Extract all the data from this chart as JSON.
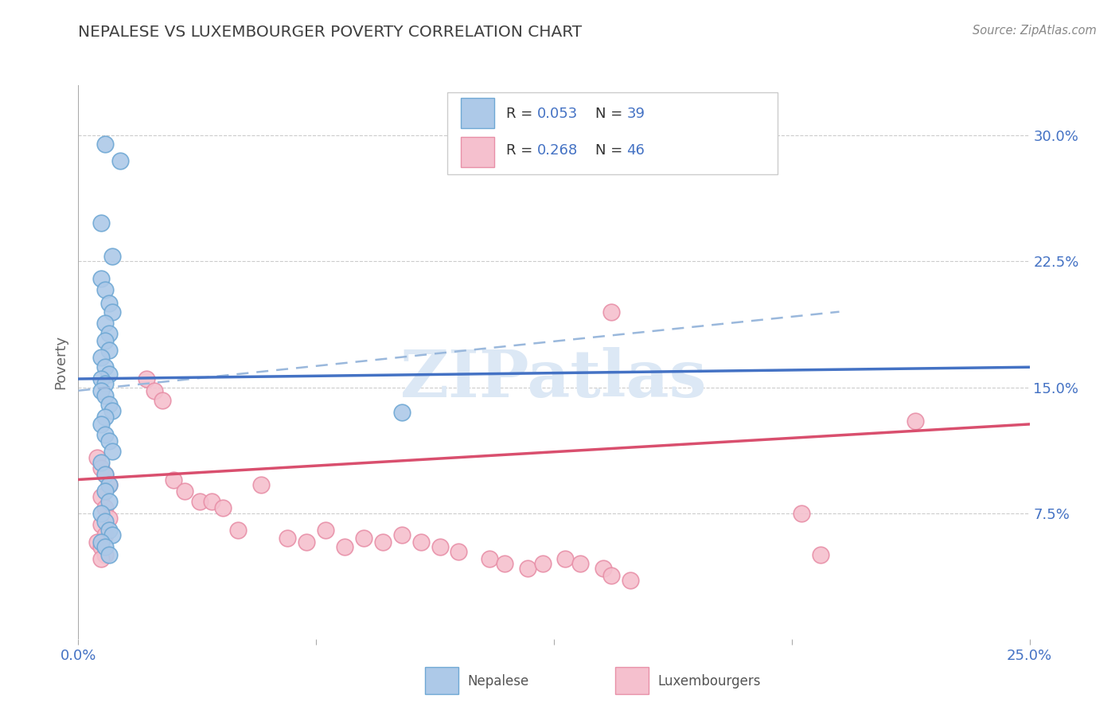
{
  "title": "NEPALESE VS LUXEMBOURGER POVERTY CORRELATION CHART",
  "source": "Source: ZipAtlas.com",
  "ylabel_label": "Poverty",
  "y_tick_labels": [
    "7.5%",
    "15.0%",
    "22.5%",
    "30.0%"
  ],
  "y_tick_values": [
    0.075,
    0.15,
    0.225,
    0.3
  ],
  "x_range": [
    0.0,
    0.25
  ],
  "y_range": [
    0.0,
    0.33
  ],
  "nepalese_color": "#adc9e8",
  "nepalese_edge": "#6fa8d4",
  "luxembourger_color": "#f5c0ce",
  "luxembourger_edge": "#e890a8",
  "trend_nepalese_color": "#4472c4",
  "trend_luxembourger_color": "#d94f6e",
  "trend_dashed_color": "#9ab8dc",
  "nepalese_R": "0.053",
  "nepalese_N": "39",
  "luxembourger_R": "0.268",
  "luxembourger_N": "46",
  "grid_color": "#cccccc",
  "background_color": "#ffffff",
  "title_color": "#404040",
  "tick_color": "#4472c4",
  "source_color": "#888888",
  "ylabel_color": "#666666",
  "legend_text_color_R": "#333333",
  "legend_text_color_N": "#4472c4",
  "watermark_color": "#dce8f5",
  "nepalese_x": [
    0.007,
    0.011,
    0.006,
    0.009,
    0.006,
    0.007,
    0.008,
    0.009,
    0.007,
    0.008,
    0.007,
    0.008,
    0.006,
    0.007,
    0.008,
    0.006,
    0.007,
    0.006,
    0.007,
    0.008,
    0.009,
    0.007,
    0.006,
    0.007,
    0.008,
    0.009,
    0.006,
    0.007,
    0.008,
    0.007,
    0.008,
    0.006,
    0.007,
    0.008,
    0.009,
    0.085,
    0.006,
    0.007,
    0.008
  ],
  "nepalese_y": [
    0.295,
    0.285,
    0.248,
    0.228,
    0.215,
    0.208,
    0.2,
    0.195,
    0.188,
    0.182,
    0.178,
    0.172,
    0.168,
    0.162,
    0.158,
    0.155,
    0.152,
    0.148,
    0.145,
    0.14,
    0.136,
    0.132,
    0.128,
    0.122,
    0.118,
    0.112,
    0.105,
    0.098,
    0.092,
    0.088,
    0.082,
    0.075,
    0.07,
    0.065,
    0.062,
    0.135,
    0.058,
    0.055,
    0.05
  ],
  "luxembourger_x": [
    0.005,
    0.006,
    0.007,
    0.008,
    0.006,
    0.007,
    0.008,
    0.006,
    0.007,
    0.005,
    0.006,
    0.007,
    0.006,
    0.018,
    0.02,
    0.022,
    0.025,
    0.028,
    0.032,
    0.035,
    0.038,
    0.042,
    0.048,
    0.055,
    0.06,
    0.065,
    0.07,
    0.075,
    0.08,
    0.085,
    0.09,
    0.095,
    0.1,
    0.108,
    0.112,
    0.118,
    0.122,
    0.128,
    0.132,
    0.138,
    0.14,
    0.145,
    0.19,
    0.195,
    0.22,
    0.14
  ],
  "luxembourger_y": [
    0.108,
    0.102,
    0.098,
    0.092,
    0.085,
    0.078,
    0.072,
    0.068,
    0.062,
    0.058,
    0.055,
    0.05,
    0.048,
    0.155,
    0.148,
    0.142,
    0.095,
    0.088,
    0.082,
    0.082,
    0.078,
    0.065,
    0.092,
    0.06,
    0.058,
    0.065,
    0.055,
    0.06,
    0.058,
    0.062,
    0.058,
    0.055,
    0.052,
    0.048,
    0.045,
    0.042,
    0.045,
    0.048,
    0.045,
    0.042,
    0.038,
    0.035,
    0.075,
    0.05,
    0.13,
    0.195
  ],
  "nep_trend_x0": 0.0,
  "nep_trend_x1": 0.25,
  "nep_trend_y0": 0.155,
  "nep_trend_y1": 0.162,
  "dash_trend_x0": 0.0,
  "dash_trend_x1": 0.2,
  "dash_trend_y0": 0.148,
  "dash_trend_y1": 0.195,
  "lux_trend_x0": 0.0,
  "lux_trend_x1": 0.25,
  "lux_trend_y0": 0.095,
  "lux_trend_y1": 0.128
}
